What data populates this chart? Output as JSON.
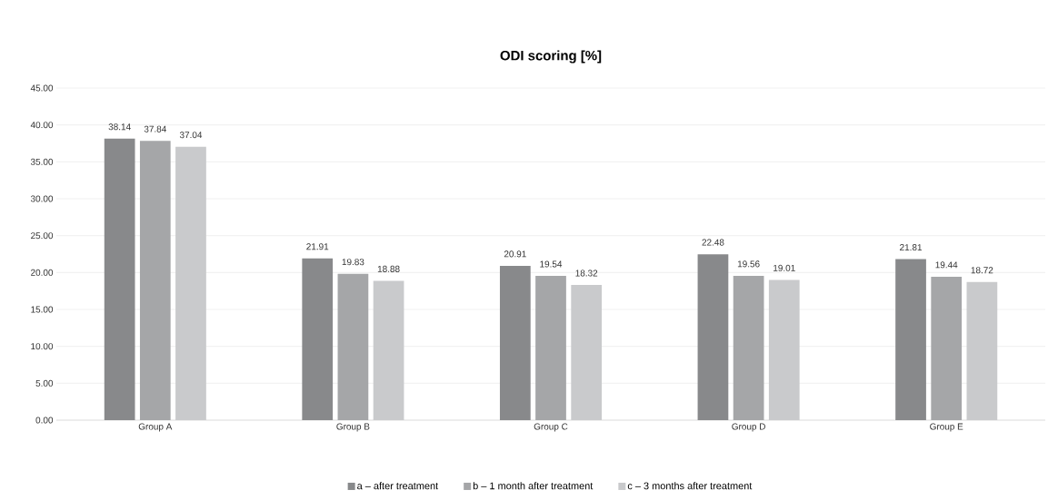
{
  "chart_data": {
    "type": "bar",
    "title": "ODI scoring [%]",
    "categories": [
      "Group A",
      "Group B",
      "Group C",
      "Group D",
      "Group E"
    ],
    "series": [
      {
        "name": "a – after treatment",
        "color": "#88898b",
        "values": [
          38.14,
          21.91,
          20.91,
          22.48,
          21.81
        ]
      },
      {
        "name": "b – 1 month after treatment",
        "color": "#a5a6a8",
        "values": [
          37.84,
          19.83,
          19.54,
          19.56,
          19.44
        ]
      },
      {
        "name": "c – 3 months after treatment",
        "color": "#c9cacc",
        "values": [
          37.04,
          18.88,
          18.32,
          19.01,
          18.72
        ]
      }
    ],
    "ylim": [
      0,
      45
    ],
    "yticks": [
      {
        "value": 0,
        "label": "0.00"
      },
      {
        "value": 5,
        "label": "5.00"
      },
      {
        "value": 10,
        "label": "10.00"
      },
      {
        "value": 15,
        "label": "15.00"
      },
      {
        "value": 20,
        "label": "20.00"
      },
      {
        "value": 25,
        "label": "25.00"
      },
      {
        "value": 30,
        "label": "30.00"
      },
      {
        "value": 35,
        "label": "35.00"
      },
      {
        "value": 40,
        "label": "40.00"
      },
      {
        "value": 45,
        "label": "45.00"
      }
    ],
    "grid": "y",
    "legend": "bottom",
    "data_labels": true
  }
}
